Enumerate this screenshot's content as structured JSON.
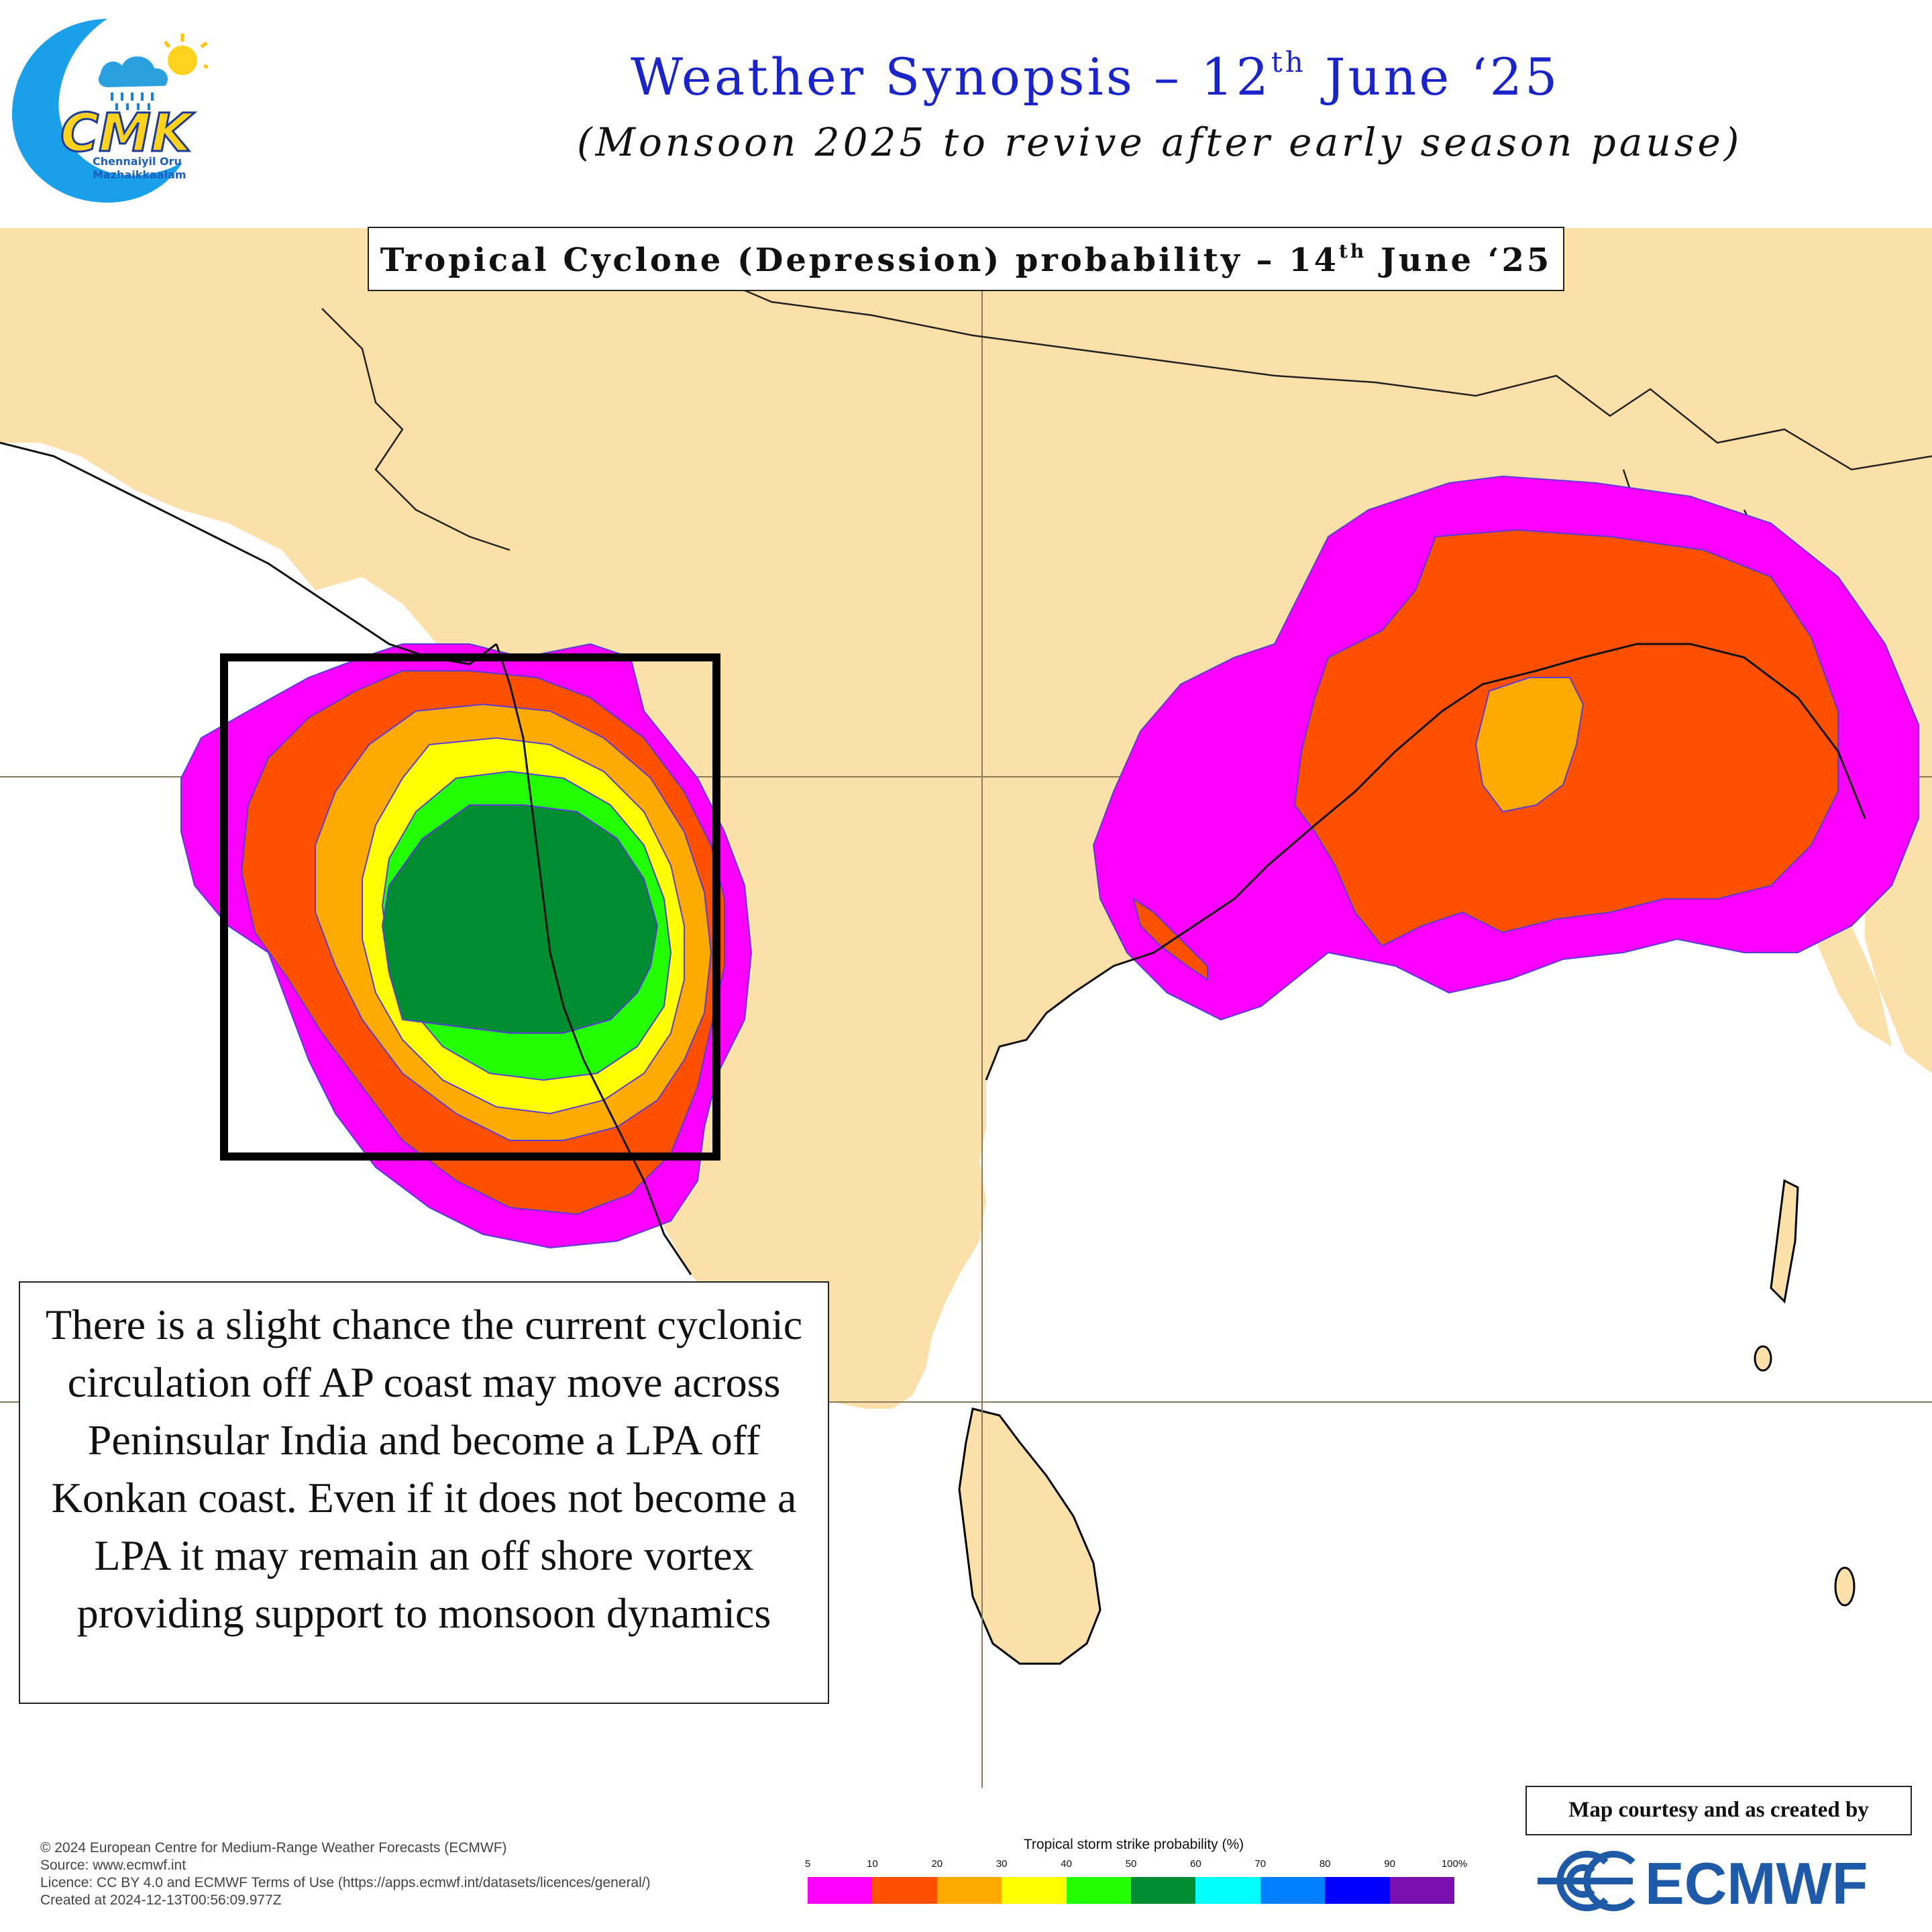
{
  "header": {
    "title_main": "Weather Synopsis – 12",
    "title_sup": "th",
    "title_end": " June ‘25",
    "subtitle": "(Monsoon 2025 to revive after early season pause)",
    "logo": {
      "mark": "CMK",
      "line1": "Chennaiyil Oru",
      "line2": "Mazhaikkaalam",
      "icons": [
        "cloud-icon",
        "sun-icon",
        "rain-icon",
        "moon-icon"
      ]
    }
  },
  "map_title": {
    "main": "Tropical Cyclone (Depression) probability – 14",
    "sup": "th",
    "end": " June ‘25"
  },
  "note": "There is a slight chance the current cyclonic circulation off AP coast may move across Peninsular India and become a LPA off Konkan coast. Even if it does not become a LPA it may remain an off shore vortex providing support to monsoon dynamics",
  "legal": [
    "© 2024 European Centre for Medium-Range Weather Forecasts (ECMWF)",
    "Source: www.ecmwf.int",
    "Licence: CC BY 4.0 and ECMWF Terms of Use (https://apps.ecmwf.int/datasets/licences/general/)",
    "Created at 2024-12-13T00:56:09.977Z"
  ],
  "legend": {
    "title": "Tropical storm strike probability (%)",
    "ticks": [
      "5",
      "10",
      "20",
      "30",
      "40",
      "50",
      "60",
      "70",
      "80",
      "90",
      "100%"
    ],
    "colors": [
      "#ff00ff",
      "#ff5000",
      "#ffaa00",
      "#ffff00",
      "#22ff00",
      "#008c30",
      "#00ffff",
      "#0080ff",
      "#0000ff",
      "#7a10b0"
    ]
  },
  "courtesy": "Map courtesy and  as created by",
  "ecmwf_logo_text": "ECMWF",
  "colors": {
    "land": "#fce0aa",
    "sea": "#ffffff",
    "title_blue": "#1a24c8",
    "ecmwf_blue": "#1e5aa8"
  }
}
